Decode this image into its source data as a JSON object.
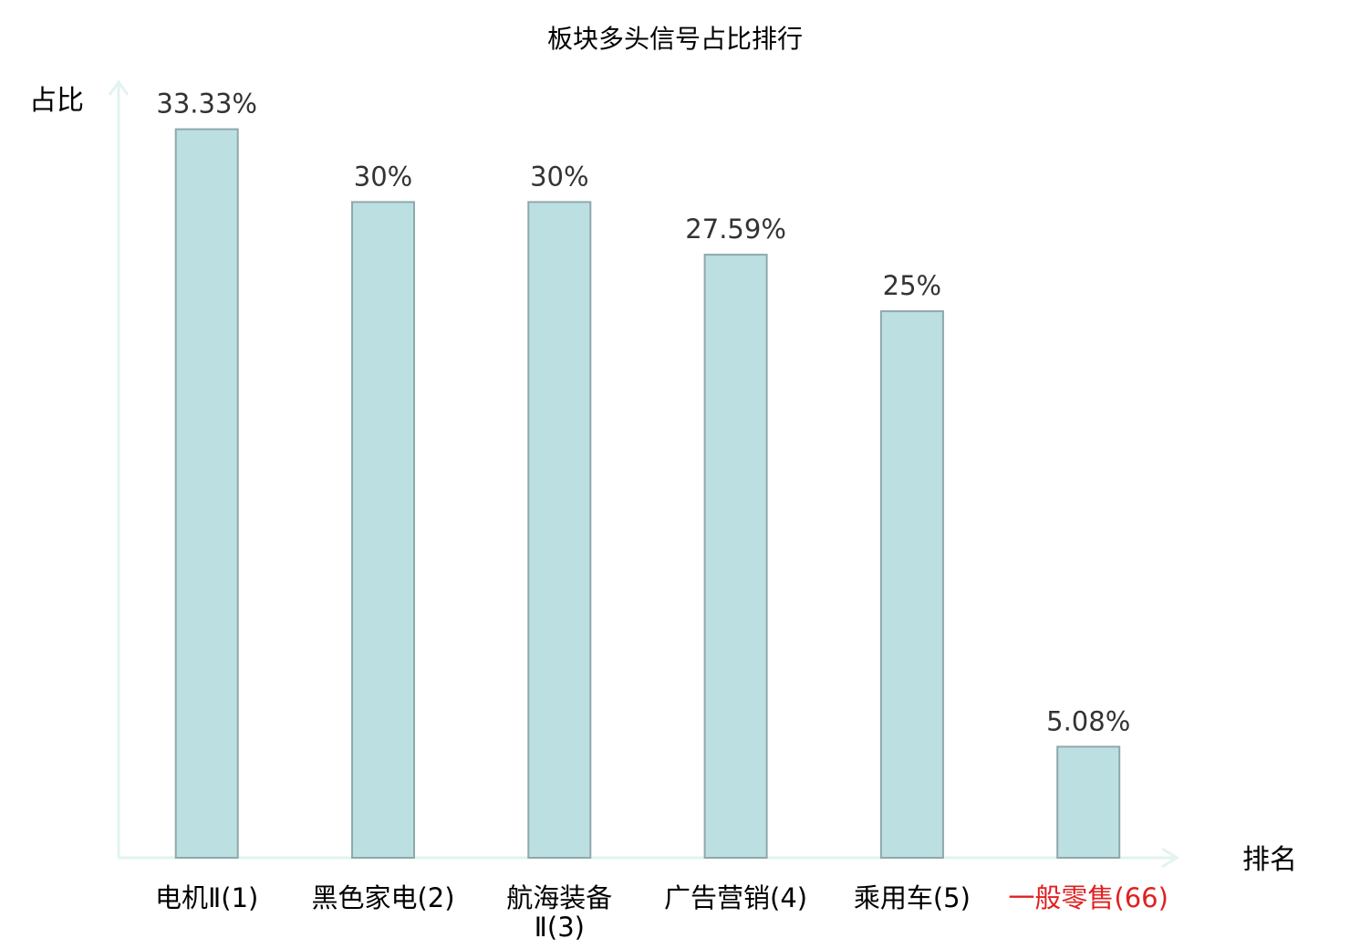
{
  "chart_data": {
    "type": "bar",
    "title": "板块多头信号占比排行",
    "xlabel": "排名",
    "ylabel": "占比",
    "ylim": [
      0,
      35.4
    ],
    "grid": false,
    "legend": "none",
    "categories": [
      [
        "电机Ⅱ(1)"
      ],
      [
        "黑色家电(2)"
      ],
      [
        "航海装备",
        "Ⅱ(3)"
      ],
      [
        "广告营销(4)"
      ],
      [
        "乘用车(5)"
      ],
      [
        "一般零售(66)"
      ]
    ],
    "highlight": [
      false,
      false,
      false,
      false,
      false,
      true
    ],
    "values": [
      33.33,
      30,
      30,
      27.59,
      25,
      5.08
    ],
    "value_labels": [
      "33.33%",
      "30%",
      "30%",
      "27.59%",
      "25%",
      "5.08%"
    ]
  },
  "colors": {
    "bar_fill": "#bce0e2",
    "bar_stroke": "#8fa8aa",
    "axis": "#e2f3f0",
    "category_text": "#000000",
    "highlight_text": "#e02020",
    "value_text": "#333333"
  }
}
